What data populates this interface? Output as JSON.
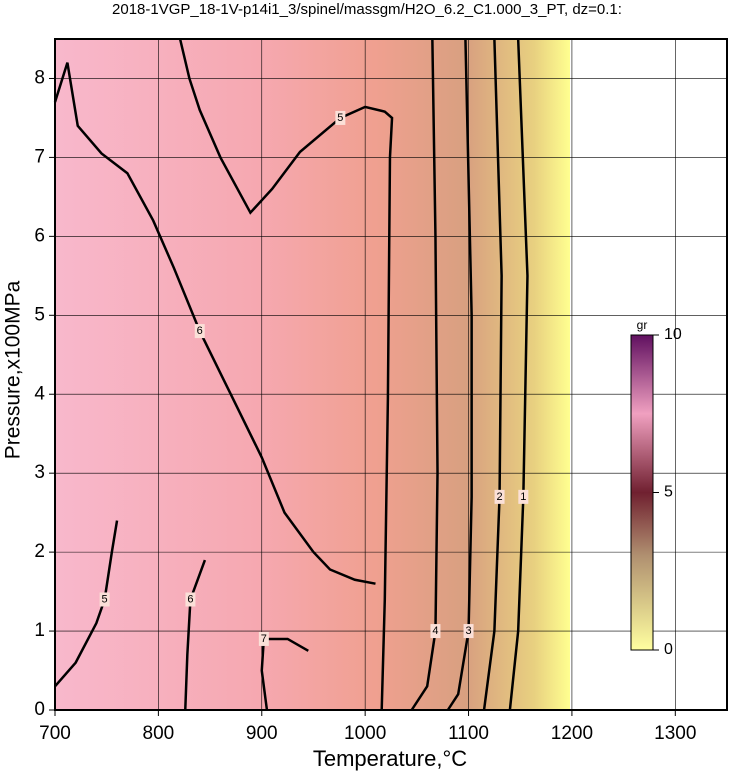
{
  "chart_data": {
    "type": "contour",
    "title": "2018-1VGP_18-1V-p14i1_3/spinel/massgm/H2O_6.2_C1.000_3_PT, dz=0.1:",
    "x_label": "Temperature,°C",
    "y_label": "Pressure,x100MPa",
    "xlim": [
      700,
      1350
    ],
    "ylim": [
      0,
      8.5
    ],
    "xticks": [
      700,
      800,
      900,
      1000,
      1100,
      1200,
      1300
    ],
    "yticks": [
      0,
      1,
      2,
      3,
      4,
      5,
      6,
      7,
      8
    ],
    "grid": true,
    "contours": [
      {
        "level": 6,
        "x": [
          700,
          712,
          722,
          745,
          770,
          795,
          815,
          840,
          870,
          900,
          922,
          950,
          966,
          990,
          1010
        ],
        "y": [
          7.7,
          8.2,
          7.4,
          7.05,
          6.8,
          6.2,
          5.6,
          4.8,
          4.0,
          3.2,
          2.5,
          2.0,
          1.78,
          1.65,
          1.6
        ]
      },
      {
        "level": 5,
        "x": [
          821,
          830,
          840,
          860,
          889,
          910,
          937,
          976,
          1000,
          1019,
          1026,
          1024,
          1022,
          1019,
          1016
        ],
        "y": [
          8.5,
          8.0,
          7.6,
          7.0,
          6.3,
          6.6,
          7.07,
          7.5,
          7.64,
          7.58,
          7.5,
          7.0,
          3.95,
          1.4,
          0
        ]
      },
      {
        "level": 4,
        "x": [
          1065,
          1068,
          1070,
          1068,
          1060,
          1045
        ],
        "y": [
          8.5,
          6.0,
          3.0,
          1.0,
          0.3,
          0
        ]
      },
      {
        "level": 3,
        "x": [
          1097,
          1103,
          1103,
          1100,
          1090,
          1080
        ],
        "y": [
          8.5,
          5.0,
          2.7,
          1.0,
          0.2,
          0
        ]
      },
      {
        "level": 2,
        "x": [
          1125,
          1132,
          1130,
          1125,
          1115
        ],
        "y": [
          8.5,
          5.5,
          2.7,
          1.0,
          0
        ]
      },
      {
        "level": 1,
        "x": [
          1148,
          1157,
          1153,
          1148,
          1140
        ],
        "y": [
          8.5,
          5.5,
          2.7,
          1.0,
          0
        ]
      },
      {
        "level": 5,
        "x": [
          700,
          720,
          740,
          748,
          755,
          760
        ],
        "y": [
          0.3,
          0.6,
          1.1,
          1.4,
          2.0,
          2.4
        ]
      },
      {
        "level": 6,
        "x": [
          826,
          828,
          831,
          845
        ],
        "y": [
          0,
          0.7,
          1.4,
          1.9
        ]
      },
      {
        "level": 7,
        "x": [
          905,
          900,
          902,
          925,
          945
        ],
        "y": [
          0,
          0.5,
          0.9,
          0.9,
          0.75
        ]
      }
    ],
    "colorbar": {
      "label": "gr",
      "lim": [
        0,
        10
      ],
      "ticks": [
        0,
        5,
        10
      ]
    }
  }
}
